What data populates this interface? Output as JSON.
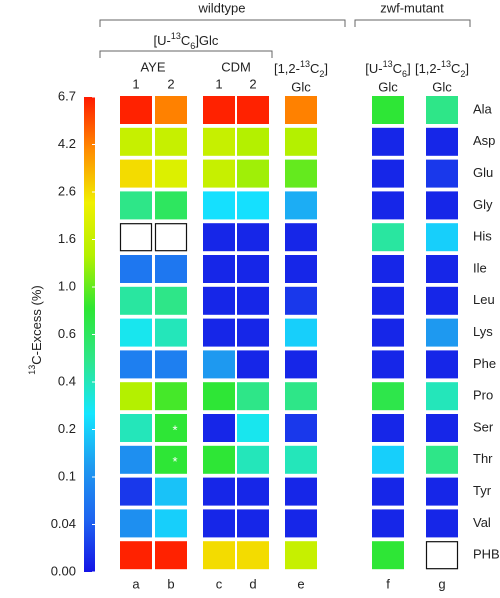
{
  "chart_data": {
    "type": "heatmap",
    "y_axis_label": [
      {
        "text": "13",
        "script": "sup"
      },
      {
        "text": "C-Excess (%)"
      }
    ],
    "groups": [
      "wildtype",
      "zwf-mutant"
    ],
    "substrate": [
      {
        "text": "[U-"
      },
      {
        "text": "13",
        "script": "sup"
      },
      {
        "text": "C"
      },
      {
        "text": "6",
        "script": "sub"
      },
      {
        "text": "]Glc"
      }
    ],
    "media": [
      "AYE",
      "CDM"
    ],
    "replicates": [
      "1",
      "2",
      "1",
      "2"
    ],
    "column_headers": [
      {
        "line1": [
          {
            "text": "[1,2-"
          },
          {
            "text": "13",
            "script": "sup"
          },
          {
            "text": "C"
          },
          {
            "text": "2",
            "script": "sub"
          },
          {
            "text": "]"
          }
        ],
        "line2": "Glc"
      },
      {
        "line1": [
          {
            "text": "[U-"
          },
          {
            "text": "13",
            "script": "sup"
          },
          {
            "text": "C"
          },
          {
            "text": "6",
            "script": "sub"
          },
          {
            "text": "]"
          }
        ],
        "line2": "Glc"
      },
      {
        "line1": [
          {
            "text": "[1,2-"
          },
          {
            "text": "13",
            "script": "sup"
          },
          {
            "text": "C"
          },
          {
            "text": "2",
            "script": "sub"
          },
          {
            "text": "]"
          }
        ],
        "line2": "Glc"
      }
    ],
    "columns": [
      "a",
      "b",
      "c",
      "d",
      "e",
      "f",
      "g"
    ],
    "rows": [
      "Ala",
      "Asp",
      "Glu",
      "Gly",
      "His",
      "Ile",
      "Leu",
      "Lys",
      "Phe",
      "Pro",
      "Ser",
      "Thr",
      "Tyr",
      "Val",
      "PHB"
    ],
    "values": [
      [
        6.5,
        4.2,
        6.5,
        6.5,
        4.2,
        0.8,
        0.5
      ],
      [
        1.6,
        1.6,
        1.6,
        1.4,
        1.4,
        0.01,
        0.01
      ],
      [
        2.6,
        2.0,
        1.6,
        1.3,
        1.0,
        0.01,
        0.02
      ],
      [
        0.5,
        0.6,
        0.25,
        0.25,
        0.15,
        0.01,
        0.01
      ],
      [
        null,
        null,
        0.01,
        0.01,
        0.01,
        0.45,
        0.2
      ],
      [
        0.07,
        0.07,
        0.01,
        0.01,
        0.01,
        0.01,
        0.01
      ],
      [
        0.45,
        0.5,
        0.01,
        0.01,
        0.02,
        0.01,
        0.01
      ],
      [
        0.3,
        0.4,
        0.01,
        0.01,
        0.2,
        0.01,
        0.12
      ],
      [
        0.08,
        0.08,
        0.12,
        0.01,
        0.01,
        0.01,
        0.01
      ],
      [
        1.4,
        0.9,
        0.8,
        0.5,
        0.5,
        0.7,
        0.4
      ],
      [
        0.4,
        0.8,
        0.01,
        0.3,
        0.02,
        0.01,
        0.01
      ],
      [
        0.1,
        0.8,
        0.8,
        0.4,
        0.4,
        0.2,
        0.5
      ],
      [
        0.02,
        0.18,
        0.01,
        0.01,
        0.01,
        0.01,
        0.01
      ],
      [
        0.1,
        0.2,
        0.01,
        0.01,
        0.01,
        0.01,
        0.01
      ],
      [
        6.5,
        6.5,
        2.6,
        2.6,
        1.6,
        0.8,
        null
      ]
    ],
    "cell_labels": [
      [
        null,
        null,
        null,
        null,
        null,
        null,
        null
      ],
      [
        null,
        null,
        null,
        null,
        null,
        null,
        null
      ],
      [
        null,
        null,
        null,
        null,
        null,
        null,
        null
      ],
      [
        null,
        null,
        null,
        null,
        null,
        null,
        null
      ],
      [
        null,
        null,
        null,
        null,
        null,
        null,
        null
      ],
      [
        null,
        null,
        null,
        null,
        null,
        null,
        null
      ],
      [
        null,
        null,
        null,
        null,
        null,
        null,
        null
      ],
      [
        null,
        null,
        null,
        null,
        null,
        null,
        null
      ],
      [
        null,
        null,
        null,
        null,
        null,
        null,
        null
      ],
      [
        null,
        null,
        null,
        null,
        null,
        null,
        null
      ],
      [
        null,
        "*",
        null,
        null,
        null,
        null,
        null
      ],
      [
        null,
        "*",
        null,
        null,
        null,
        null,
        null
      ],
      [
        null,
        null,
        null,
        null,
        null,
        null,
        null
      ],
      [
        null,
        null,
        null,
        null,
        null,
        null,
        null
      ],
      [
        null,
        null,
        null,
        null,
        null,
        null,
        null
      ]
    ],
    "colorbar_ticks": [
      {
        "value": 0,
        "label": "0.00"
      },
      0.04,
      0.1,
      0.2,
      0.4,
      0.6,
      {
        "value": 1,
        "label": "1.0"
      },
      1.6,
      2.6,
      4.2,
      6.7
    ],
    "colormap": [
      "#1414e6",
      "#1e64f0",
      "#1e9af0",
      "#14e6ff",
      "#2ee68c",
      "#2ee632",
      "#b4f000",
      "#f0f000",
      "#ff8c00",
      "#ff1a00"
    ]
  }
}
